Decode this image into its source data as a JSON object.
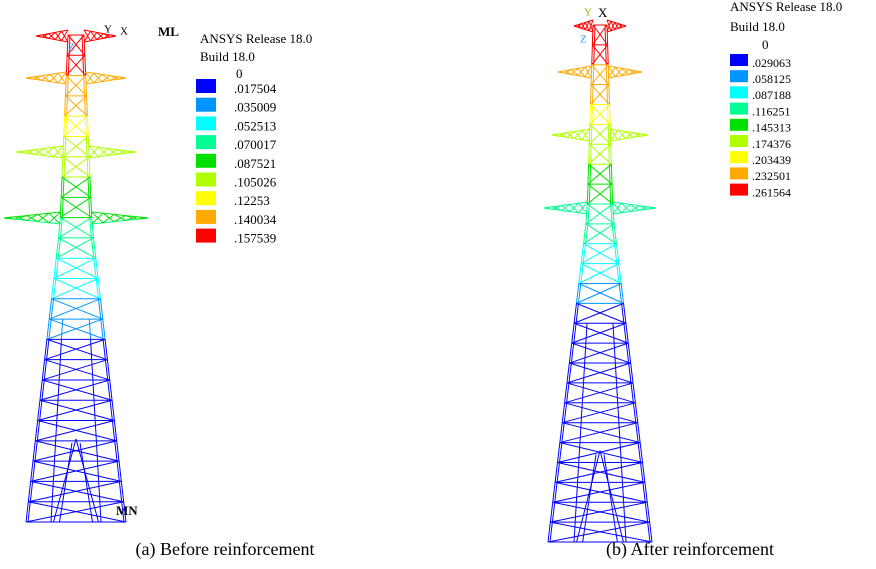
{
  "panels": [
    {
      "legend": {
        "title": "ANSYS Release 18.0",
        "build": "Build 18.0",
        "zero": "0",
        "levels": [
          ".017504",
          ".035009",
          ".052513",
          ".070017",
          ".087521",
          ".105026",
          ".12253",
          ".140034",
          ".157539"
        ],
        "colors": [
          "#0000ff",
          "#0094ff",
          "#00ffff",
          "#00ff94",
          "#00e000",
          "#b0ff00",
          "#ffff00",
          "#ffaa00",
          "#ff0000"
        ]
      },
      "axis_labels": [
        "Y",
        "Z",
        "X"
      ],
      "node_labels": [
        "ML",
        "MN"
      ],
      "caption": "(a) Before reinforcement"
    },
    {
      "legend": {
        "title": "ANSYS Release 18.0",
        "build": "Build 18.0",
        "zero": "0",
        "levels": [
          ".029063",
          ".058125",
          ".087188",
          ".116251",
          ".145313",
          ".174376",
          ".203439",
          ".232501",
          ".261564"
        ],
        "colors": [
          "#0000ff",
          "#0094ff",
          "#00ffff",
          "#00ff94",
          "#00e000",
          "#b0ff00",
          "#ffff00",
          "#ffaa00",
          "#ff0000"
        ]
      },
      "axis_labels": [
        "Y",
        "X",
        "Z"
      ],
      "caption": "(b) After reinforcement"
    }
  ]
}
